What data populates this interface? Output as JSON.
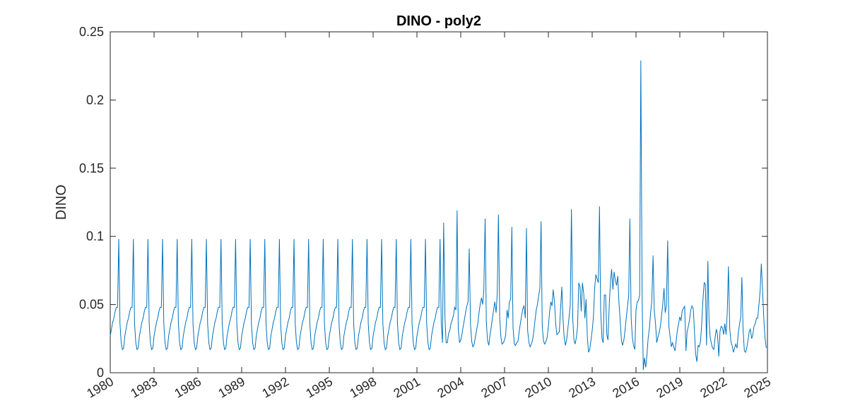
{
  "chart_data": {
    "type": "line",
    "title": "DINO - poly2",
    "xlabel": "",
    "ylabel": "DINO",
    "xlim": [
      1980,
      2025
    ],
    "ylim": [
      0,
      0.25
    ],
    "x_ticks": [
      "1980",
      "1983",
      "1986",
      "1989",
      "1992",
      "1995",
      "1998",
      "2001",
      "2004",
      "2007",
      "2010",
      "2013",
      "2016",
      "2019",
      "2022",
      "2025"
    ],
    "y_ticks": [
      "0",
      "0.05",
      "0.1",
      "0.15",
      "0.2",
      "0.25"
    ],
    "grid": false,
    "series": [
      {
        "color": "#0072BD",
        "climatology_1980_2002": [
          0.027,
          0.032,
          0.037,
          0.04,
          0.045,
          0.048,
          0.048,
          0.098,
          0.036,
          0.022,
          0.017,
          0.018
        ],
        "x": [
          2002.83,
          2002.92,
          2003.0,
          2003.08,
          2003.17,
          2003.25,
          2003.33,
          2003.42,
          2003.5,
          2003.58,
          2003.67,
          2003.75,
          2003.83,
          2003.92,
          2004.0,
          2004.08,
          2004.17,
          2004.25,
          2004.33,
          2004.42,
          2004.5,
          2004.58,
          2004.67,
          2004.75,
          2004.83,
          2004.92,
          2005.0,
          2005.08,
          2005.17,
          2005.25,
          2005.33,
          2005.42,
          2005.5,
          2005.58,
          2005.67,
          2005.75,
          2005.83,
          2005.92,
          2006.0,
          2006.08,
          2006.17,
          2006.25,
          2006.33,
          2006.42,
          2006.5,
          2006.58,
          2006.67,
          2006.75,
          2006.83,
          2006.92,
          2007.0,
          2007.08,
          2007.17,
          2007.25,
          2007.33,
          2007.42,
          2007.5,
          2007.58,
          2007.67,
          2007.75,
          2007.83,
          2007.92,
          2008.0,
          2008.08,
          2008.17,
          2008.25,
          2008.33,
          2008.42,
          2008.5,
          2008.58,
          2008.67,
          2008.75,
          2008.83,
          2008.92,
          2009.0,
          2009.08,
          2009.17,
          2009.25,
          2009.33,
          2009.42,
          2009.5,
          2009.58,
          2009.67,
          2009.75,
          2009.83,
          2009.92,
          2010.0,
          2010.08,
          2010.17,
          2010.25,
          2010.33,
          2010.42,
          2010.5,
          2010.58,
          2010.67,
          2010.75,
          2010.83,
          2010.92,
          2011.0,
          2011.08,
          2011.17,
          2011.25,
          2011.33,
          2011.42,
          2011.5,
          2011.58,
          2011.67,
          2011.75,
          2011.83,
          2011.92,
          2012.0,
          2012.08,
          2012.17,
          2012.25,
          2012.33,
          2012.42,
          2012.5,
          2012.58,
          2012.67,
          2012.75,
          2012.83,
          2012.92,
          2013.0,
          2013.08,
          2013.17,
          2013.25,
          2013.33,
          2013.42,
          2013.5,
          2013.58,
          2013.67,
          2013.75,
          2013.83,
          2013.92,
          2014.0,
          2014.08,
          2014.17,
          2014.25,
          2014.33,
          2014.42,
          2014.5,
          2014.58,
          2014.67,
          2014.75,
          2014.83,
          2014.92,
          2015.0,
          2015.08,
          2015.17,
          2015.25,
          2015.33,
          2015.42,
          2015.5,
          2015.58,
          2015.67,
          2015.75,
          2015.83,
          2015.92,
          2016.0,
          2016.08,
          2016.17,
          2016.25,
          2016.33,
          2016.42,
          2016.5,
          2016.58,
          2016.67,
          2016.75,
          2016.83,
          2016.92,
          2017.0,
          2017.08,
          2017.17,
          2017.25,
          2017.33,
          2017.42,
          2017.5,
          2017.58,
          2017.67,
          2017.75,
          2017.83,
          2017.92,
          2018.0,
          2018.08,
          2018.17,
          2018.25,
          2018.33,
          2018.42,
          2018.5,
          2018.58,
          2018.67,
          2018.75,
          2018.83,
          2018.92,
          2019.0,
          2019.08,
          2019.17,
          2019.25,
          2019.33,
          2019.42,
          2019.5,
          2019.58,
          2019.67,
          2019.75,
          2019.83,
          2019.92,
          2020.0,
          2020.08,
          2020.17,
          2020.25,
          2020.33,
          2020.42,
          2020.5,
          2020.58,
          2020.67,
          2020.75,
          2020.83,
          2020.92,
          2021.0,
          2021.08,
          2021.17,
          2021.25,
          2021.33,
          2021.42,
          2021.5,
          2021.58,
          2021.67,
          2021.75,
          2021.83,
          2021.92,
          2022.0,
          2022.08,
          2022.17,
          2022.25,
          2022.33,
          2022.42,
          2022.5,
          2022.58,
          2022.67,
          2022.75,
          2022.83,
          2022.92,
          2023.0,
          2023.08,
          2023.17,
          2023.25,
          2023.33,
          2023.42,
          2023.5,
          2023.58,
          2023.67,
          2023.75,
          2023.83,
          2023.92,
          2024.0,
          2024.08,
          2024.17,
          2024.25,
          2024.33,
          2024.42,
          2024.5,
          2024.58,
          2024.67,
          2024.75,
          2024.83,
          2024.92
        ],
        "y": [
          0.11,
          0.04,
          0.022,
          0.022,
          0.029,
          0.031,
          0.036,
          0.039,
          0.042,
          0.048,
          0.046,
          0.119,
          0.032,
          0.022,
          0.024,
          0.028,
          0.034,
          0.039,
          0.044,
          0.049,
          0.052,
          0.091,
          0.035,
          0.023,
          0.019,
          0.021,
          0.026,
          0.031,
          0.036,
          0.044,
          0.05,
          0.055,
          0.05,
          0.06,
          0.113,
          0.038,
          0.024,
          0.02,
          0.027,
          0.033,
          0.04,
          0.046,
          0.052,
          0.044,
          0.058,
          0.116,
          0.04,
          0.026,
          0.021,
          0.022,
          0.024,
          0.028,
          0.046,
          0.04,
          0.052,
          0.054,
          0.107,
          0.033,
          0.021,
          0.02,
          0.022,
          0.023,
          0.03,
          0.036,
          0.042,
          0.047,
          0.049,
          0.04,
          0.106,
          0.031,
          0.022,
          0.019,
          0.021,
          0.024,
          0.03,
          0.038,
          0.046,
          0.05,
          0.056,
          0.062,
          0.111,
          0.034,
          0.023,
          0.021,
          0.023,
          0.026,
          0.034,
          0.044,
          0.052,
          0.049,
          0.061,
          0.052,
          0.036,
          0.028,
          0.029,
          0.03,
          0.046,
          0.063,
          0.04,
          0.026,
          0.02,
          0.024,
          0.032,
          0.041,
          0.05,
          0.12,
          0.04,
          0.024,
          0.021,
          0.026,
          0.034,
          0.066,
          0.063,
          0.045,
          0.066,
          0.058,
          0.04,
          0.054,
          0.026,
          0.015,
          0.017,
          0.024,
          0.031,
          0.04,
          0.062,
          0.072,
          0.069,
          0.066,
          0.122,
          0.046,
          0.025,
          0.022,
          0.057,
          0.057,
          0.028,
          0.024,
          0.05,
          0.066,
          0.076,
          0.061,
          0.074,
          0.068,
          0.064,
          0.071,
          0.052,
          0.038,
          0.024,
          0.02,
          0.024,
          0.031,
          0.04,
          0.049,
          0.057,
          0.113,
          0.04,
          0.026,
          0.02,
          0.017,
          0.046,
          0.052,
          0.053,
          0.057,
          0.229,
          0.054,
          0.002,
          0.011,
          0.004,
          0.013,
          0.025,
          0.033,
          0.044,
          0.052,
          0.086,
          0.046,
          0.037,
          0.022,
          0.026,
          0.029,
          0.034,
          0.042,
          0.05,
          0.062,
          0.044,
          0.049,
          0.097,
          0.034,
          0.027,
          0.019,
          0.022,
          0.019,
          0.016,
          0.023,
          0.031,
          0.036,
          0.041,
          0.038,
          0.046,
          0.047,
          0.049,
          0.016,
          0.03,
          0.034,
          0.039,
          0.046,
          0.049,
          0.047,
          0.031,
          0.014,
          0.008,
          0.02,
          0.019,
          0.023,
          0.036,
          0.053,
          0.066,
          0.065,
          0.02,
          0.082,
          0.038,
          0.026,
          0.021,
          0.018,
          0.017,
          0.026,
          0.032,
          0.028,
          0.012,
          0.03,
          0.034,
          0.033,
          0.028,
          0.036,
          0.028,
          0.045,
          0.078,
          0.032,
          0.023,
          0.02,
          0.015,
          0.018,
          0.021,
          0.018,
          0.029,
          0.035,
          0.041,
          0.07,
          0.032,
          0.016,
          0.015,
          0.018,
          0.024,
          0.03,
          0.032,
          0.025,
          0.028,
          0.034,
          0.036,
          0.04,
          0.04,
          0.05,
          0.06,
          0.08,
          0.06,
          0.04,
          0.026,
          0.018
        ]
      }
    ]
  }
}
